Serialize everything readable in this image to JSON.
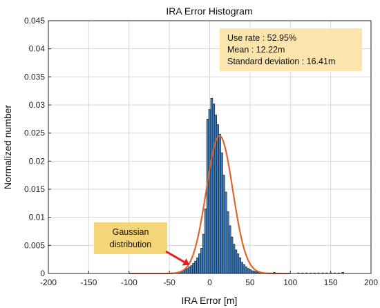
{
  "chart_data": {
    "type": "bar",
    "title": "IRA Error Histogram",
    "xlabel": "IRA Error [m]",
    "ylabel": "Normalized number",
    "xlim": [
      -200,
      200
    ],
    "ylim": [
      0,
      0.045
    ],
    "grid": true,
    "x_ticks": [
      "-200",
      "-150",
      "-100",
      "-50",
      "0",
      "50",
      "100",
      "150",
      "200"
    ],
    "y_ticks": [
      "0",
      "0.005",
      "0.01",
      "0.015",
      "0.02",
      "0.025",
      "0.03",
      "0.035",
      "0.04",
      "0.045"
    ],
    "bin_width": 2.5,
    "bins": [
      [
        -40,
        0.0002
      ],
      [
        -37.5,
        0.0003
      ],
      [
        -35,
        0.0004
      ],
      [
        -32.5,
        0.0005
      ],
      [
        -30,
        0.0007
      ],
      [
        -27.5,
        0.0009
      ],
      [
        -25,
        0.0012
      ],
      [
        -22.5,
        0.0014
      ],
      [
        -20,
        0.0018
      ],
      [
        -17.5,
        0.0022
      ],
      [
        -15,
        0.0028
      ],
      [
        -12.5,
        0.0035
      ],
      [
        -10,
        0.0045
      ],
      [
        -7.5,
        0.007
      ],
      [
        -5,
        0.0115
      ],
      [
        -2.5,
        0.0275
      ],
      [
        0,
        0.0292
      ],
      [
        2.5,
        0.0312
      ],
      [
        5,
        0.0302
      ],
      [
        7.5,
        0.0282
      ],
      [
        10,
        0.0265
      ],
      [
        12.5,
        0.0248
      ],
      [
        15,
        0.0215
      ],
      [
        17.5,
        0.0175
      ],
      [
        20,
        0.0145
      ],
      [
        22.5,
        0.011
      ],
      [
        25,
        0.0085
      ],
      [
        27.5,
        0.0065
      ],
      [
        30,
        0.0052
      ],
      [
        32.5,
        0.0042
      ],
      [
        35,
        0.0035
      ],
      [
        37.5,
        0.0028
      ],
      [
        40,
        0.002
      ],
      [
        42.5,
        0.0016
      ],
      [
        45,
        0.0012
      ],
      [
        47.5,
        0.0009
      ],
      [
        50,
        0.0007
      ],
      [
        52.5,
        0.0005
      ],
      [
        55,
        0.0004
      ],
      [
        57.5,
        0.0003
      ],
      [
        60,
        0.0002
      ],
      [
        62.5,
        0.0002
      ],
      [
        65,
        0.0001
      ],
      [
        67.5,
        0.0001
      ],
      [
        75,
        0.0001
      ],
      [
        80,
        0.0002
      ],
      [
        85,
        0.0001
      ],
      [
        110,
        0.0001
      ],
      [
        115,
        0.0001
      ],
      [
        120,
        0.0001
      ],
      [
        125,
        0.0001
      ],
      [
        130,
        0.0001
      ],
      [
        135,
        0.0001
      ],
      [
        140,
        0.0001
      ],
      [
        145,
        0.0001
      ],
      [
        150,
        0.0001
      ],
      [
        155,
        0.0001
      ],
      [
        160,
        0.0001
      ],
      [
        165,
        0.0002
      ]
    ],
    "gaussian": {
      "mean": 12.22,
      "std": 16.41,
      "peak": 0.0245,
      "x_range": [
        -100,
        100
      ]
    },
    "stats_box": {
      "lines": [
        "Use rate : 52.95%",
        "Mean : 12.22m",
        "Standard deviation : 16.41m"
      ]
    },
    "annotation": {
      "lines": [
        "Gaussian",
        "distribution"
      ],
      "arrow_target_x": -25,
      "arrow_target_y": 0.0015
    },
    "colors": {
      "bar_fill": "#3f7fc0",
      "bar_edge": "#111111",
      "curve": "#e0642a",
      "stats_box_bg": "#fbe5ad",
      "annotation_bg": "#f5d57a",
      "arrow": "#e81e1e",
      "grid": "#d6d6d6"
    }
  }
}
